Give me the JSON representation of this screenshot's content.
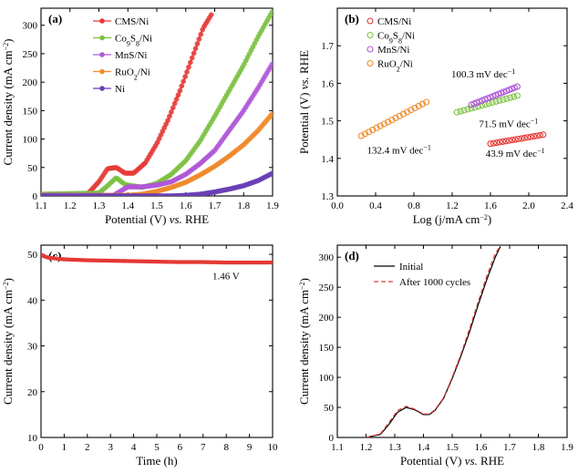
{
  "chart_data": [
    {
      "panel": "(a)",
      "type": "line",
      "xlabel": "Potential (V) vs. RHE",
      "ylabel": "Current density (mA cm⁻²)",
      "xlim": [
        1.1,
        1.9
      ],
      "ylim": [
        0,
        330
      ],
      "xticks": [
        "1.1",
        "1.2",
        "1.3",
        "1.4",
        "1.5",
        "1.6",
        "1.7",
        "1.8",
        "1.9"
      ],
      "yticks": [
        "0",
        "50",
        "100",
        "150",
        "200",
        "250",
        "300"
      ],
      "legend_position": "top-left",
      "series": [
        {
          "name": "CMS/Ni",
          "color": "#e53935",
          "x": [
            1.1,
            1.2,
            1.26,
            1.3,
            1.33,
            1.36,
            1.39,
            1.42,
            1.46,
            1.5,
            1.54,
            1.58,
            1.62,
            1.66,
            1.69
          ],
          "y": [
            2,
            2,
            3,
            25,
            48,
            50,
            40,
            40,
            58,
            92,
            135,
            185,
            240,
            295,
            320
          ]
        },
        {
          "name": "Co₉S₈/Ni",
          "color": "#7cc142",
          "x": [
            1.1,
            1.3,
            1.33,
            1.36,
            1.39,
            1.45,
            1.5,
            1.55,
            1.6,
            1.65,
            1.7,
            1.75,
            1.8,
            1.85,
            1.9
          ],
          "y": [
            3,
            5,
            18,
            32,
            20,
            15,
            22,
            38,
            62,
            97,
            140,
            185,
            230,
            280,
            325
          ]
        },
        {
          "name": "MnS/Ni",
          "color": "#b057d8",
          "x": [
            1.1,
            1.35,
            1.4,
            1.45,
            1.5,
            1.55,
            1.6,
            1.65,
            1.7,
            1.75,
            1.8,
            1.85,
            1.9
          ],
          "y": [
            1,
            1,
            16,
            16,
            19,
            25,
            38,
            57,
            80,
            115,
            150,
            190,
            233
          ]
        },
        {
          "name": "RuO₂/Ni",
          "color": "#f08a2a",
          "x": [
            1.1,
            1.4,
            1.45,
            1.5,
            1.55,
            1.6,
            1.65,
            1.7,
            1.75,
            1.8,
            1.85,
            1.9
          ],
          "y": [
            0,
            1,
            3,
            8,
            15,
            24,
            37,
            52,
            70,
            90,
            115,
            145
          ]
        },
        {
          "name": "Ni",
          "color": "#6a3fb5",
          "x": [
            1.1,
            1.5,
            1.55,
            1.6,
            1.65,
            1.7,
            1.75,
            1.8,
            1.85,
            1.9
          ],
          "y": [
            0,
            0,
            0,
            1,
            3,
            7,
            12,
            18,
            27,
            40
          ]
        }
      ]
    },
    {
      "panel": "(b)",
      "type": "scatter",
      "xlabel": "Log (j/mA cm⁻²)",
      "ylabel": "Potential (V) vs. RHE",
      "xlim": [
        0.0,
        2.4
      ],
      "ylim": [
        1.3,
        1.8
      ],
      "xticks": [
        "0.0",
        "0.4",
        "0.8",
        "1.2",
        "1.6",
        "2.0",
        "2.4"
      ],
      "yticks": [
        "1.3",
        "1.4",
        "1.5",
        "1.6",
        "1.7"
      ],
      "legend_position": "top-left",
      "series": [
        {
          "name": "CMS/Ni",
          "color": "#e53935",
          "x_range": [
            1.6,
            2.15
          ],
          "y_range": [
            1.439,
            1.463
          ],
          "tafel_label": "43.9 mV dec⁻¹"
        },
        {
          "name": "Co₉S₈/Ni",
          "color": "#7cc142",
          "x_range": [
            1.25,
            1.88
          ],
          "y_range": [
            1.523,
            1.567
          ],
          "tafel_label": "71.5 mV dec⁻¹"
        },
        {
          "name": "MnS/Ni",
          "color": "#b057d8",
          "x_range": [
            1.4,
            1.88
          ],
          "y_range": [
            1.543,
            1.591
          ],
          "tafel_label": "100.3 mV dec⁻¹"
        },
        {
          "name": "RuO₂/Ni",
          "color": "#f08a2a",
          "x_range": [
            0.25,
            0.93
          ],
          "y_range": [
            1.46,
            1.55
          ],
          "tafel_label": "132.4 mV dec⁻¹"
        }
      ]
    },
    {
      "panel": "(c)",
      "type": "line",
      "xlabel": "Time (h)",
      "ylabel": "Current density (mA cm⁻²)",
      "xlim": [
        0,
        10
      ],
      "ylim": [
        10,
        52
      ],
      "xticks": [
        "0",
        "1",
        "2",
        "3",
        "4",
        "5",
        "6",
        "7",
        "8",
        "9",
        "10"
      ],
      "yticks": [
        "10",
        "20",
        "30",
        "40",
        "50"
      ],
      "annotation": "1.46 V",
      "series": [
        {
          "color": "#e53935",
          "x": [
            0,
            0.1,
            0.3,
            0.6,
            1,
            1.5,
            2,
            3,
            4,
            5,
            6,
            7,
            8,
            9,
            10
          ],
          "y": [
            50,
            49.6,
            49.3,
            49.1,
            48.9,
            48.8,
            48.7,
            48.6,
            48.5,
            48.4,
            48.3,
            48.3,
            48.2,
            48.2,
            48.2
          ]
        }
      ]
    },
    {
      "panel": "(d)",
      "type": "line",
      "xlabel": "Potential (V) vs. RHE",
      "ylabel": "Current density (mA cm⁻²)",
      "xlim": [
        1.1,
        1.9
      ],
      "ylim": [
        0,
        320
      ],
      "xticks": [
        "1.1",
        "1.2",
        "1.3",
        "1.4",
        "1.5",
        "1.6",
        "1.7",
        "1.8",
        "1.9"
      ],
      "yticks": [
        "0",
        "50",
        "100",
        "150",
        "200",
        "250",
        "300"
      ],
      "legend_position": "top-left",
      "series": [
        {
          "name": "Initial",
          "color": "#000000",
          "dashed": false,
          "x": [
            1.2,
            1.25,
            1.28,
            1.31,
            1.34,
            1.37,
            1.4,
            1.42,
            1.44,
            1.47,
            1.5,
            1.53,
            1.56,
            1.59,
            1.62,
            1.65,
            1.67
          ],
          "y": [
            0,
            5,
            22,
            42,
            50,
            46,
            38,
            38,
            45,
            65,
            98,
            135,
            175,
            220,
            262,
            300,
            320
          ]
        },
        {
          "name": "After 1000 cycles",
          "color": "#e53935",
          "dashed": true,
          "x": [
            1.2,
            1.25,
            1.28,
            1.31,
            1.34,
            1.37,
            1.4,
            1.42,
            1.44,
            1.47,
            1.5,
            1.53,
            1.56,
            1.59,
            1.62,
            1.65,
            1.67
          ],
          "y": [
            0,
            6,
            25,
            45,
            52,
            47,
            39,
            39,
            46,
            66,
            100,
            138,
            180,
            225,
            268,
            306,
            320
          ]
        }
      ]
    }
  ]
}
